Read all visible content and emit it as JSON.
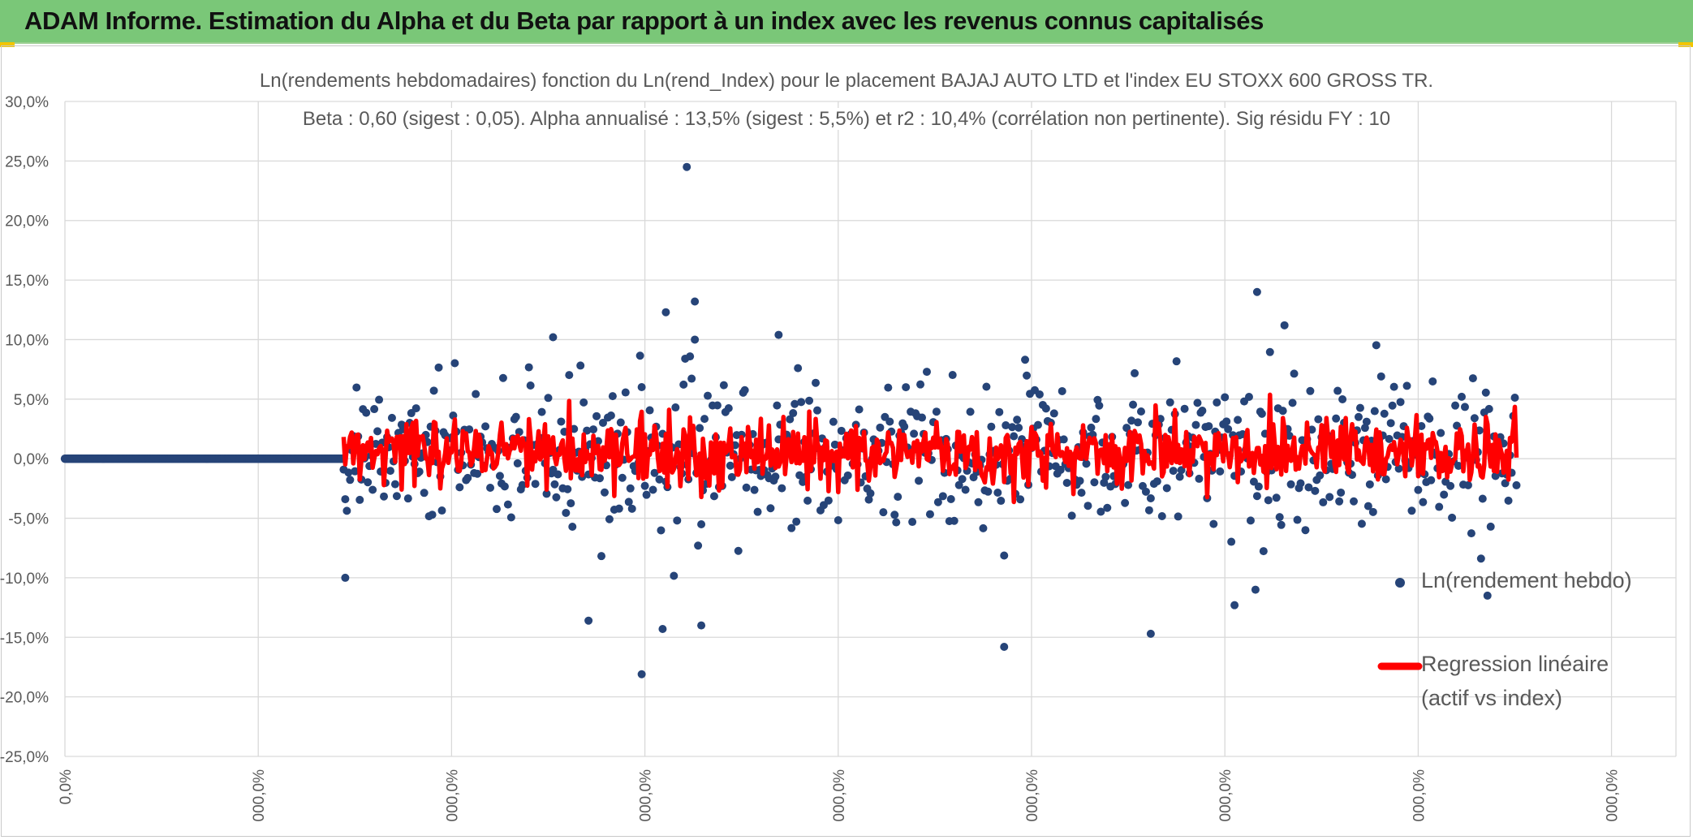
{
  "banner": {
    "title": "ADAM Informe. Estimation du Alpha et du Beta par rapport à un index avec les revenus connus capitalisés",
    "background": "#7ac778"
  },
  "chart_data": {
    "type": "scatter",
    "title_line1": "Ln(rendements hebdomadaires) fonction du Ln(rend_Index) pour le placement BAJAJ AUTO LTD et l'index EU STOXX 600 GROSS TR.",
    "title_line2": "Beta : 0,60 (sigest : 0,05). Alpha annualisé : 13,5% (sigest : 5,5%) et r2 : 10,4% (corrélation non pertinente). Sig résidu FY : 10",
    "ylim": [
      -0.25,
      0.3
    ],
    "xlim": [
      0,
      1000
    ],
    "y_ticks": [
      {
        "value": 0.3,
        "label": "30,0%"
      },
      {
        "value": 0.25,
        "label": "25,0%"
      },
      {
        "value": 0.2,
        "label": "20,0%"
      },
      {
        "value": 0.15,
        "label": "15,0%"
      },
      {
        "value": 0.1,
        "label": "10,0%"
      },
      {
        "value": 0.05,
        "label": "5,0%"
      },
      {
        "value": 0.0,
        "label": "0,0%"
      },
      {
        "value": -0.05,
        "label": "-5,0%"
      },
      {
        "value": -0.1,
        "label": "-10,0%"
      },
      {
        "value": -0.15,
        "label": "-15,0%"
      },
      {
        "value": -0.2,
        "label": "-20,0%"
      },
      {
        "value": -0.25,
        "label": "-25,0%"
      }
    ],
    "x_ticks": [
      {
        "value": 0,
        "label": "0,0%"
      },
      {
        "value": 120,
        "label": "000,0%"
      },
      {
        "value": 240,
        "label": "000,0%"
      },
      {
        "value": 360,
        "label": "000,0%"
      },
      {
        "value": 480,
        "label": "000,0%"
      },
      {
        "value": 600,
        "label": "000,0%"
      },
      {
        "value": 720,
        "label": "000,0%"
      },
      {
        "value": 840,
        "label": "000,0%"
      },
      {
        "value": 960,
        "label": "000,0%"
      }
    ],
    "gridlines": true,
    "legend_position": "right",
    "series": [
      {
        "name": "Ln(rendement hebdo)",
        "kind": "scatter",
        "color": "#264478"
      },
      {
        "name": "Regression linéaire (actif vs index)",
        "kind": "line",
        "color": "#ff0000"
      }
    ],
    "zero_segment": {
      "x_start": 0,
      "x_end": 173,
      "y": 0.0
    },
    "active_range": {
      "x_start": 173,
      "x_end": 901
    },
    "notable_points": [
      {
        "x": 386,
        "y": 0.245
      },
      {
        "x": 391,
        "y": 0.132
      },
      {
        "x": 373,
        "y": 0.123
      },
      {
        "x": 740,
        "y": 0.14
      },
      {
        "x": 757,
        "y": 0.112
      },
      {
        "x": 303,
        "y": 0.102
      },
      {
        "x": 443,
        "y": 0.104
      },
      {
        "x": 174,
        "y": -0.1
      },
      {
        "x": 358,
        "y": -0.181
      },
      {
        "x": 583,
        "y": -0.158
      },
      {
        "x": 674,
        "y": -0.147
      },
      {
        "x": 325,
        "y": -0.136
      },
      {
        "x": 371,
        "y": -0.143
      },
      {
        "x": 395,
        "y": -0.14
      },
      {
        "x": 726,
        "y": -0.123
      },
      {
        "x": 883,
        "y": -0.115
      }
    ],
    "legend": {
      "scatter_label": "Ln(rendement hebdo)",
      "line_label_1": "Regression linéaire",
      "line_label_2": "(actif vs index)"
    }
  }
}
